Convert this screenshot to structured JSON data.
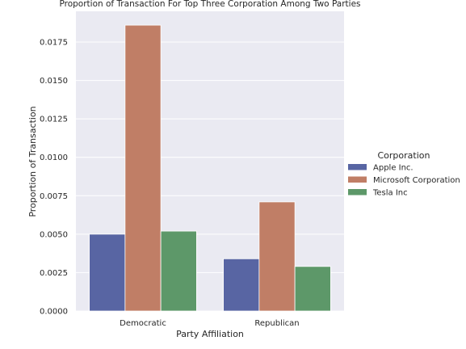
{
  "chart_data": {
    "type": "bar",
    "title": "Proportion of Transaction For Top Three Corporation Among Two Parties",
    "xlabel": "Party Affiliation",
    "ylabel": "Proportion of Transaction",
    "categories": [
      "Democratic",
      "Republican"
    ],
    "series": [
      {
        "name": "Apple Inc.",
        "values": [
          0.005,
          0.0034
        ],
        "color": "#5865a3"
      },
      {
        "name": "Microsoft Corporation",
        "values": [
          0.0186,
          0.0071
        ],
        "color": "#c07e66"
      },
      {
        "name": "Tesla Inc",
        "values": [
          0.0052,
          0.0029
        ],
        "color": "#5d9869"
      }
    ],
    "ylim": [
      0,
      0.0195
    ],
    "yticks": [
      "0.0000",
      "0.0025",
      "0.0050",
      "0.0075",
      "0.0100",
      "0.0125",
      "0.0150",
      "0.0175"
    ],
    "grid": true,
    "legend": {
      "title": "Corporation",
      "placement": "right"
    },
    "colors": {
      "background": "#eaeaf2",
      "grid": "#ffffff"
    }
  }
}
